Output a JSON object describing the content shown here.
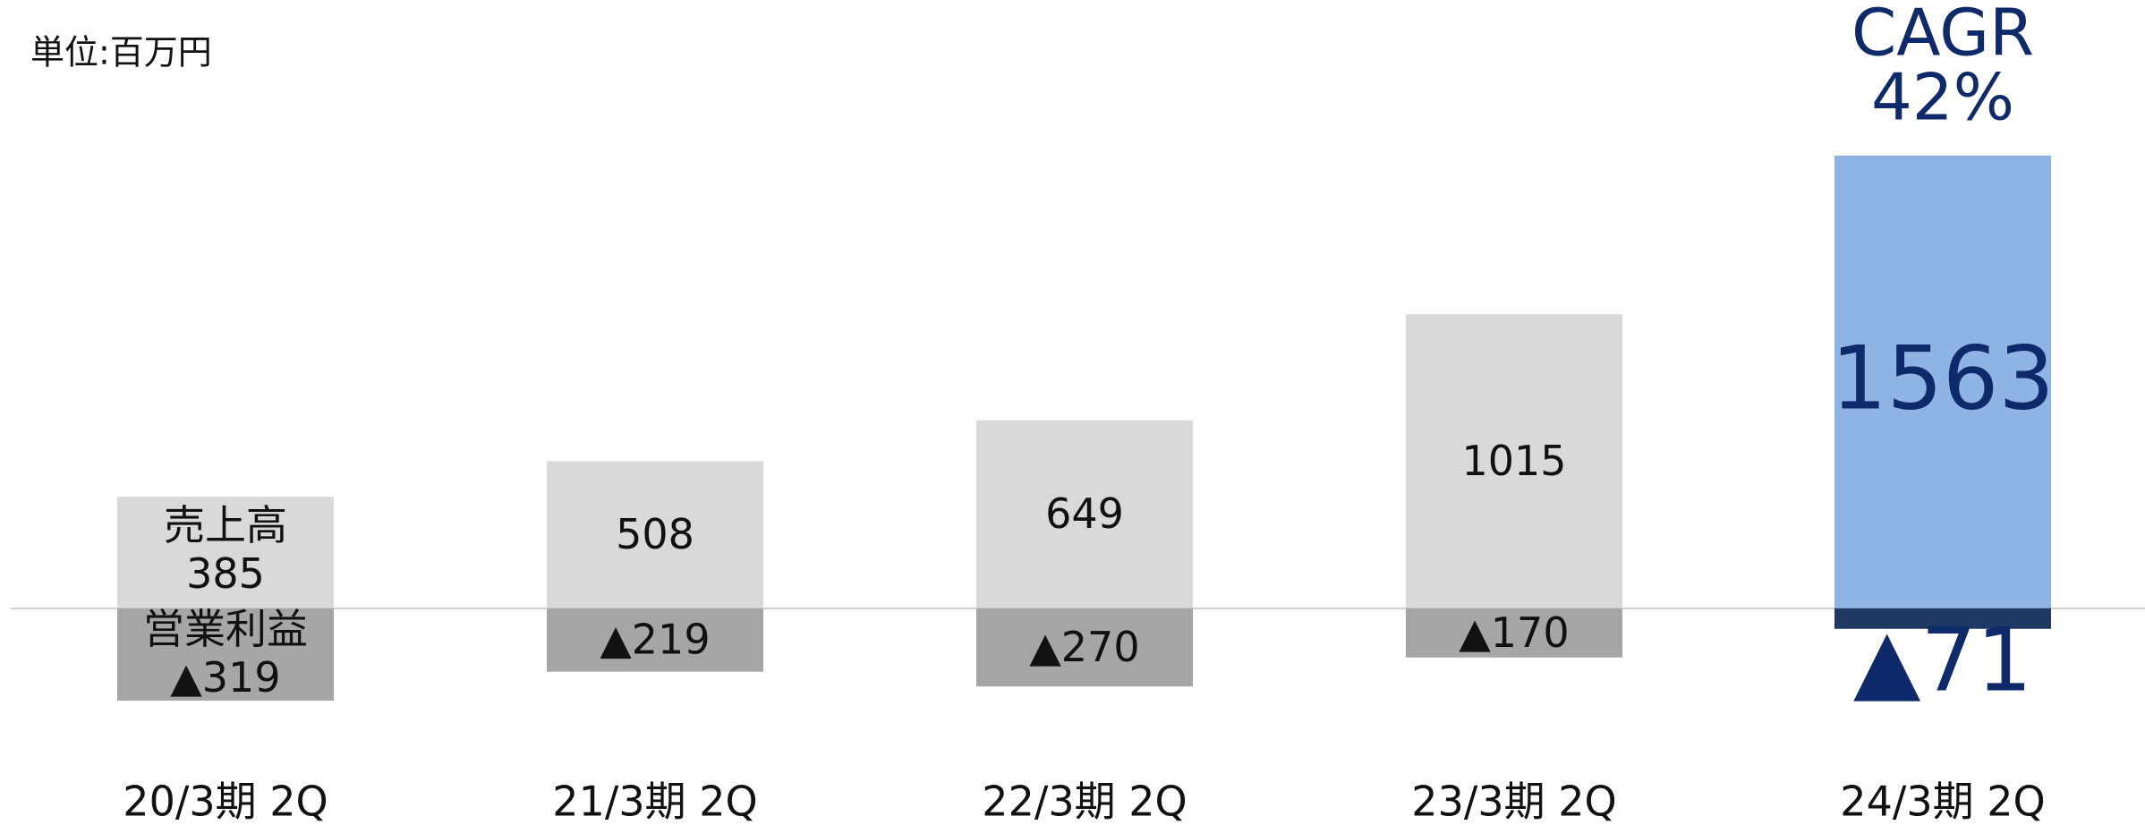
{
  "chart_data": {
    "type": "bar",
    "unit_label": "単位:百万円",
    "annotation": [
      "CAGR",
      "42%"
    ],
    "annotation_color": "#0f2a6b",
    "categories": [
      "20/3期 2Q",
      "21/3期 2Q",
      "22/3期 2Q",
      "23/3期 2Q",
      "24/3期 2Q"
    ],
    "series": [
      {
        "name": "売上高",
        "values": [
          385,
          508,
          649,
          1015,
          1563
        ],
        "colors": [
          "#d9d9d9",
          "#d9d9d9",
          "#d9d9d9",
          "#d9d9d9",
          "#8eb4e3"
        ],
        "label_colors": [
          "#111111",
          "#111111",
          "#111111",
          "#111111",
          "#0f2a6b"
        ]
      },
      {
        "name": "営業利益",
        "values": [
          -319,
          -219,
          -270,
          -170,
          -71
        ],
        "value_labels": [
          "▲319",
          "▲219",
          "▲270",
          "▲170",
          "▲71"
        ],
        "colors": [
          "#a6a6a6",
          "#a6a6a6",
          "#a6a6a6",
          "#a6a6a6",
          "#1f3864"
        ],
        "label_colors": [
          "#111111",
          "#111111",
          "#111111",
          "#111111",
          "#0f2a6b"
        ]
      }
    ],
    "ylim": [
      -600,
      2100
    ]
  }
}
